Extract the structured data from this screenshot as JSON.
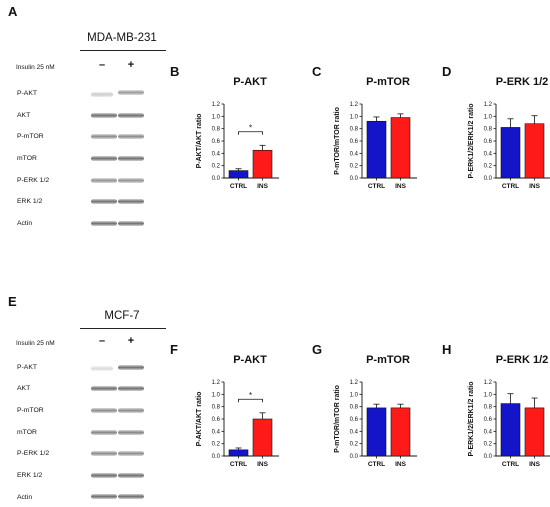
{
  "panels": {
    "A": "A",
    "B": "B",
    "C": "C",
    "D": "D",
    "E": "E",
    "F": "F",
    "G": "G",
    "H": "H"
  },
  "blots": [
    {
      "cell_line": "MDA-MB-231",
      "treatment_label": "Insulin 25 nM",
      "signs": [
        "–",
        "+"
      ],
      "proteins": [
        "P-AKT",
        "AKT",
        "P-mTOR",
        "mTOR",
        "P-ERK 1/2",
        "ERK 1/2",
        "Actin"
      ]
    },
    {
      "cell_line": "MCF-7",
      "treatment_label": "Insulin 25 nM",
      "signs": [
        "–",
        "+"
      ],
      "proteins": [
        "P-AKT",
        "AKT",
        "P-mTOR",
        "mTOR",
        "P-ERK 1/2",
        "ERK 1/2",
        "Actin"
      ]
    }
  ],
  "colors": {
    "ctrl": "#1414c8",
    "ins": "#ff1a1a"
  },
  "chart_data": [
    {
      "panel": "B",
      "type": "bar",
      "title": "P-AKT",
      "ylabel": "P-AKT/AKT ratio",
      "categories": [
        "CTRL",
        "INS"
      ],
      "values": [
        0.12,
        0.45
      ],
      "errors": [
        0.03,
        0.08
      ],
      "ylim": [
        0,
        1.2
      ],
      "yticks": [
        "0.0",
        "0.2",
        "0.4",
        "0.6",
        "0.8",
        "1.0",
        "1.2"
      ],
      "significance": "*"
    },
    {
      "panel": "C",
      "type": "bar",
      "title": "P-mTOR",
      "ylabel": "P-mTOR/mTOR ratio",
      "categories": [
        "CTRL",
        "INS"
      ],
      "values": [
        0.92,
        0.98
      ],
      "errors": [
        0.07,
        0.06
      ],
      "ylim": [
        0,
        1.2
      ],
      "yticks": [
        "0.0",
        "0.2",
        "0.4",
        "0.6",
        "0.8",
        "1.0",
        "1.2"
      ]
    },
    {
      "panel": "D",
      "type": "bar",
      "title": "P-ERK 1/2",
      "ylabel": "P-ERK1/2/ERK1/2 ratio",
      "categories": [
        "CTRL",
        "INS"
      ],
      "values": [
        0.82,
        0.88
      ],
      "errors": [
        0.14,
        0.13
      ],
      "ylim": [
        0,
        1.2
      ],
      "yticks": [
        "0.0",
        "0.2",
        "0.4",
        "0.6",
        "0.8",
        "1.0",
        "1.2"
      ]
    },
    {
      "panel": "F",
      "type": "bar",
      "title": "P-AKT",
      "ylabel": "P-AKT/AKT ratio",
      "categories": [
        "CTRL",
        "INS"
      ],
      "values": [
        0.1,
        0.6
      ],
      "errors": [
        0.03,
        0.1
      ],
      "ylim": [
        0,
        1.2
      ],
      "yticks": [
        "0.0",
        "0.2",
        "0.4",
        "0.6",
        "0.8",
        "1.0",
        "1.2"
      ],
      "significance": "*"
    },
    {
      "panel": "G",
      "type": "bar",
      "title": "P-mTOR",
      "ylabel": "P-mTOR/mTOR ratio",
      "categories": [
        "CTRL",
        "INS"
      ],
      "values": [
        0.78,
        0.78
      ],
      "errors": [
        0.06,
        0.06
      ],
      "ylim": [
        0,
        1.2
      ],
      "yticks": [
        "0.0",
        "0.2",
        "0.4",
        "0.6",
        "0.8",
        "1.0",
        "1.2"
      ]
    },
    {
      "panel": "H",
      "type": "bar",
      "title": "P-ERK 1/2",
      "ylabel": "P-ERK1/2/ERK1/2 ratio",
      "categories": [
        "CTRL",
        "INS"
      ],
      "values": [
        0.85,
        0.78
      ],
      "errors": [
        0.16,
        0.16
      ],
      "ylim": [
        0,
        1.2
      ],
      "yticks": [
        "0.0",
        "0.2",
        "0.4",
        "0.6",
        "0.8",
        "1.0",
        "1.2"
      ]
    }
  ]
}
